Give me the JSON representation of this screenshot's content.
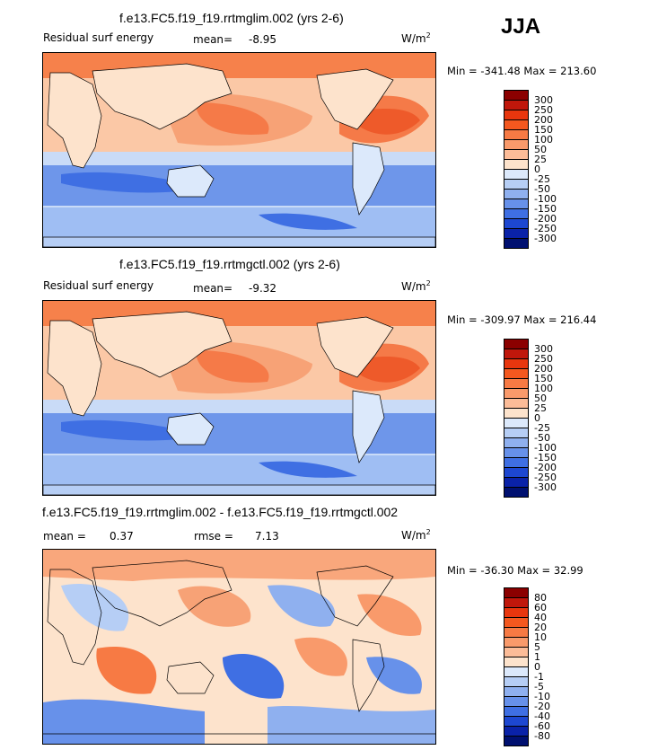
{
  "season": "JJA",
  "panels": [
    {
      "title": "f.e13.FC5.f19_f19.rrtmglim.002 (yrs 2-6)",
      "field_label": "Residual surf energy",
      "stat1_label": "mean=",
      "stat1_value": "-8.95",
      "stat2_label": "",
      "stat2_value": "",
      "units": "W/m",
      "units_sup": "2",
      "min_label": "Min =",
      "min_value": "-341.48",
      "max_label": "Max =",
      "max_value": "213.60",
      "colorbar": {
        "levels": [
          "300",
          "250",
          "200",
          "150",
          "100",
          "50",
          "25",
          "0",
          "-25",
          "-50",
          "-100",
          "-150",
          "-200",
          "-250",
          "-300"
        ],
        "colors": [
          "#8b0000",
          "#c0170b",
          "#e8360e",
          "#f4581f",
          "#f77a44",
          "#f99a6b",
          "#fcbc98",
          "#fde3cc",
          "#dce9fb",
          "#b6cef5",
          "#8fb0ef",
          "#6791ea",
          "#3f6fe3",
          "#1d47d1",
          "#0a22a8",
          "#001070"
        ]
      }
    },
    {
      "title": "f.e13.FC5.f19_f19.rrtmgctl.002 (yrs 2-6)",
      "field_label": "Residual surf energy",
      "stat1_label": "mean=",
      "stat1_value": "-9.32",
      "stat2_label": "",
      "stat2_value": "",
      "units": "W/m",
      "units_sup": "2",
      "min_label": "Min =",
      "min_value": "-309.97",
      "max_label": "Max =",
      "max_value": "216.44",
      "colorbar": {
        "levels": [
          "300",
          "250",
          "200",
          "150",
          "100",
          "50",
          "25",
          "0",
          "-25",
          "-50",
          "-100",
          "-150",
          "-200",
          "-250",
          "-300"
        ],
        "colors": [
          "#8b0000",
          "#c0170b",
          "#e8360e",
          "#f4581f",
          "#f77a44",
          "#f99a6b",
          "#fcbc98",
          "#fde3cc",
          "#dce9fb",
          "#b6cef5",
          "#8fb0ef",
          "#6791ea",
          "#3f6fe3",
          "#1d47d1",
          "#0a22a8",
          "#001070"
        ]
      }
    },
    {
      "title": "f.e13.FC5.f19_f19.rrtmglim.002 - f.e13.FC5.f19_f19.rrtmgctl.002",
      "field_label": "",
      "stat1_label": "mean =",
      "stat1_value": "0.37",
      "stat2_label": "rmse =",
      "stat2_value": "7.13",
      "units": "W/m",
      "units_sup": "2",
      "min_label": "Min =",
      "min_value": "-36.30",
      "max_label": "Max =",
      "max_value": "32.99",
      "colorbar": {
        "levels": [
          "80",
          "60",
          "40",
          "20",
          "10",
          "5",
          "1",
          "0",
          "-1",
          "-5",
          "-10",
          "-20",
          "-40",
          "-60",
          "-80"
        ],
        "colors": [
          "#8b0000",
          "#c0170b",
          "#e8360e",
          "#f4581f",
          "#f77a44",
          "#f99a6b",
          "#fcbc98",
          "#fde3cc",
          "#dce9fb",
          "#b6cef5",
          "#8fb0ef",
          "#6791ea",
          "#3f6fe3",
          "#1d47d1",
          "#0a22a8",
          "#001070"
        ]
      }
    }
  ],
  "chart_data": [
    {
      "type": "heatmap",
      "title": "f.e13.FC5.f19_f19.rrtmglim.002 (yrs 2-6)",
      "field": "Residual surf energy",
      "units": "W/m2",
      "mean": -8.95,
      "min": -341.48,
      "max": 213.6,
      "contour_levels": [
        -300,
        -250,
        -200,
        -150,
        -100,
        -50,
        -25,
        0,
        25,
        50,
        100,
        150,
        200,
        250,
        300
      ]
    },
    {
      "type": "heatmap",
      "title": "f.e13.FC5.f19_f19.rrtmgctl.002 (yrs 2-6)",
      "field": "Residual surf energy",
      "units": "W/m2",
      "mean": -9.32,
      "min": -309.97,
      "max": 216.44,
      "contour_levels": [
        -300,
        -250,
        -200,
        -150,
        -100,
        -50,
        -25,
        0,
        25,
        50,
        100,
        150,
        200,
        250,
        300
      ]
    },
    {
      "type": "heatmap",
      "title": "f.e13.FC5.f19_f19.rrtmglim.002 - f.e13.FC5.f19_f19.rrtmgctl.002",
      "units": "W/m2",
      "mean": 0.37,
      "rmse": 7.13,
      "min": -36.3,
      "max": 32.99,
      "contour_levels": [
        -80,
        -60,
        -40,
        -20,
        -10,
        -5,
        -1,
        0,
        1,
        5,
        10,
        20,
        40,
        60,
        80
      ]
    }
  ]
}
